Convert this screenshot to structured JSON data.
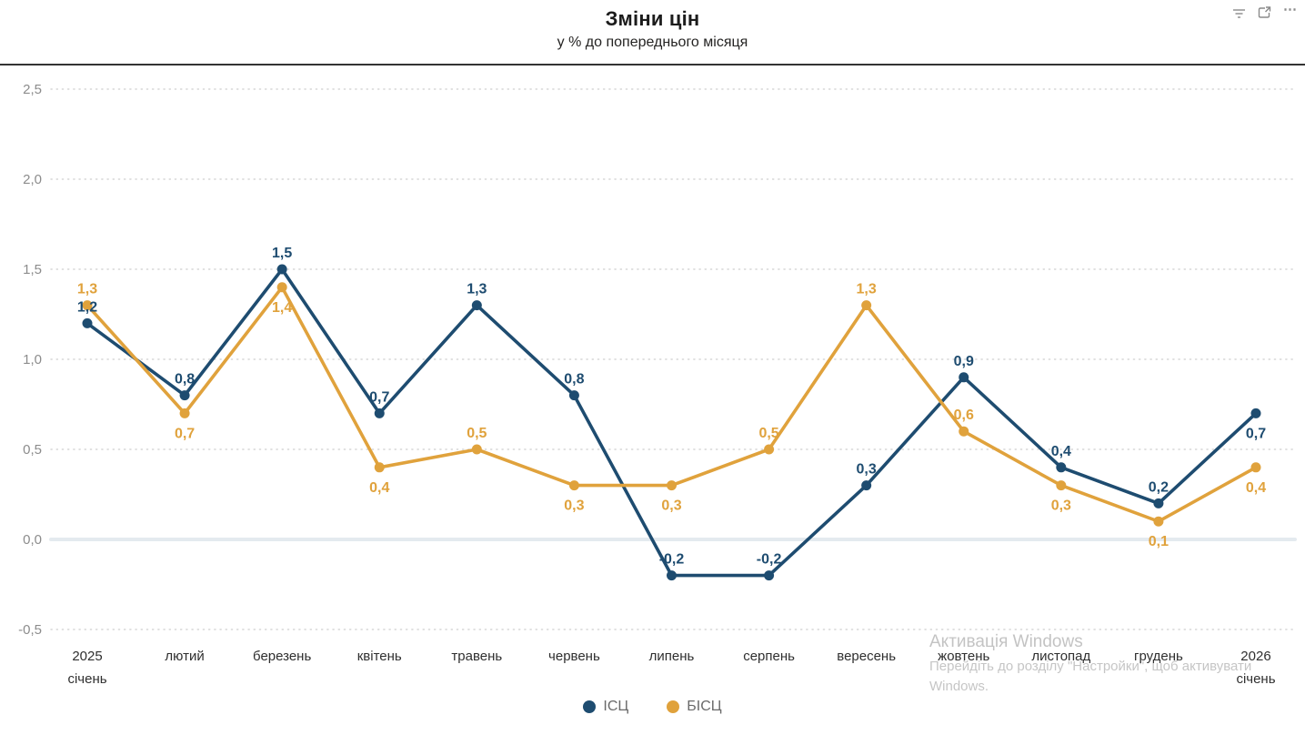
{
  "header": {
    "title": "Зміни цін",
    "subtitle": "у % до попереднього місяця"
  },
  "toolbar": {
    "filter": "filters",
    "focus": "focus mode",
    "more": "..."
  },
  "watermark": {
    "title": "Активація Windows",
    "line2": "Перейдіть до розділу \"Настройки\", щоб активувати",
    "line3": "Windows."
  },
  "chart_data": {
    "type": "line",
    "title": "Зміни цін",
    "subtitle": "у % до попереднього місяця",
    "grid": "dotted horizontal gridlines, solid highlighted zero line",
    "legend_position": "bottom center",
    "ylim": [
      -0.5,
      2.5
    ],
    "y_ticks": [
      {
        "value": 2.5,
        "label": "2,5"
      },
      {
        "value": 2.0,
        "label": "2,0"
      },
      {
        "value": 1.5,
        "label": "1,5"
      },
      {
        "value": 1.0,
        "label": "1,0"
      },
      {
        "value": 0.5,
        "label": "0,5"
      },
      {
        "value": 0.0,
        "label": "0,0"
      },
      {
        "value": -0.5,
        "label": "-0,5"
      }
    ],
    "categories": [
      [
        "2025",
        "січень"
      ],
      [
        "лютий"
      ],
      [
        "березень"
      ],
      [
        "квітень"
      ],
      [
        "травень"
      ],
      [
        "червень"
      ],
      [
        "липень"
      ],
      [
        "серпень"
      ],
      [
        "вересень"
      ],
      [
        "жовтень"
      ],
      [
        "листопад"
      ],
      [
        "грудень"
      ],
      [
        "2026",
        "січень"
      ]
    ],
    "series": [
      {
        "name": "ІСЦ",
        "color": "#1e4c70",
        "values": [
          1.2,
          0.8,
          1.5,
          0.7,
          1.3,
          0.8,
          -0.2,
          -0.2,
          0.3,
          0.9,
          0.4,
          0.2,
          0.7
        ],
        "labels": [
          "1,2",
          "0,8",
          "1,5",
          "0,7",
          "1,3",
          "0,8",
          "-0,2",
          "-0,2",
          "0,3",
          "0,9",
          "0,4",
          "0,2",
          "0,7"
        ],
        "label_side": [
          "above",
          "above",
          "above",
          "above",
          "above",
          "above",
          "above",
          "above",
          "above",
          "above",
          "above",
          "above",
          "below"
        ]
      },
      {
        "name": "БІСЦ",
        "color": "#e0a23c",
        "values": [
          1.3,
          0.7,
          1.4,
          0.4,
          0.5,
          0.3,
          0.3,
          0.5,
          1.3,
          0.6,
          0.3,
          0.1,
          0.4
        ],
        "labels": [
          "1,3",
          "0,7",
          "1,4",
          "0,4",
          "0,5",
          "0,3",
          "0,3",
          "0,5",
          "1,3",
          "0,6",
          "0,3",
          "0,1",
          "0,4"
        ],
        "label_side": [
          "above",
          "below",
          "below",
          "below",
          "above",
          "below",
          "below",
          "above",
          "above",
          "above",
          "below",
          "below",
          "below"
        ]
      }
    ]
  }
}
